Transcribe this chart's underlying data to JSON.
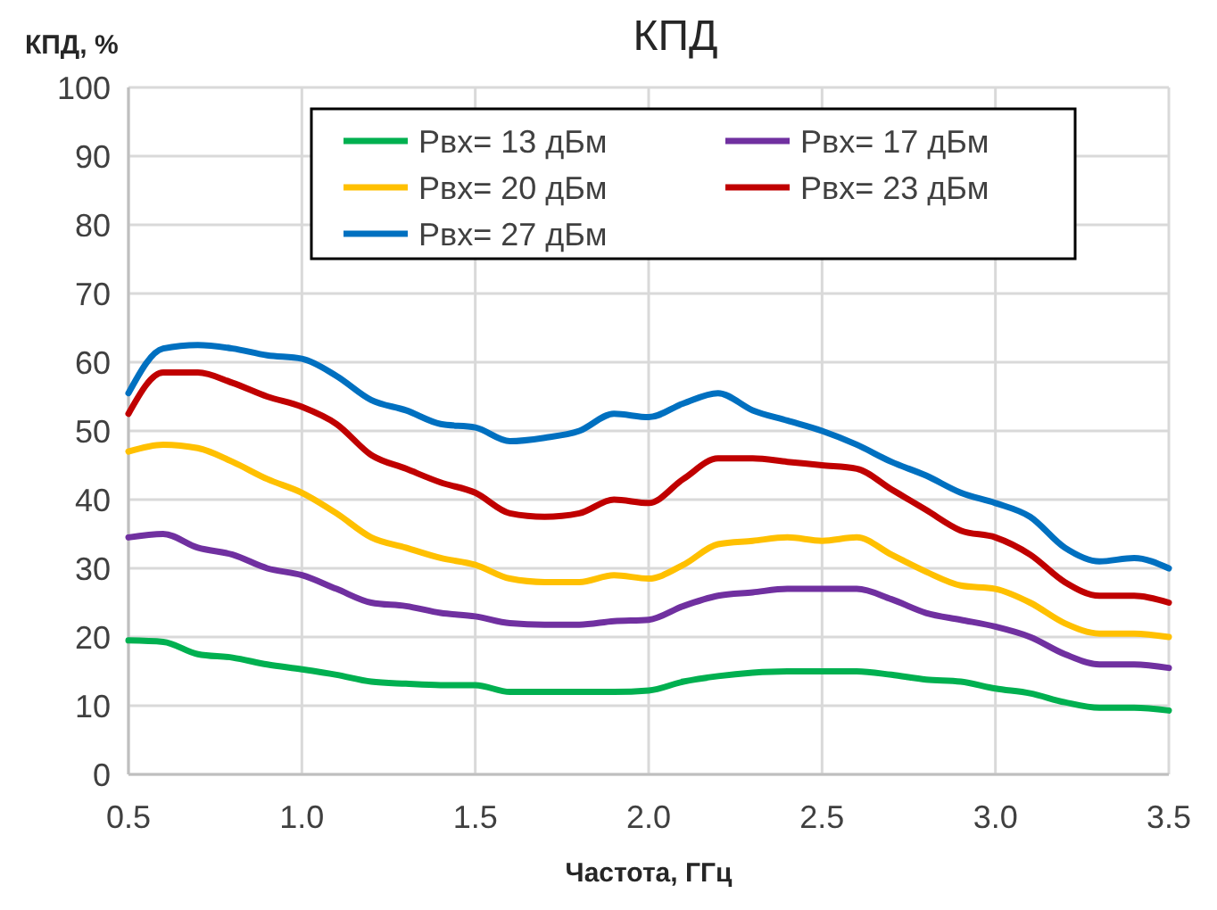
{
  "chart_data": {
    "type": "line",
    "title": "КПД",
    "xlabel": "Частота, ГГц",
    "ylabel": "КПД, %",
    "x": [
      0.5,
      0.6,
      0.7,
      0.8,
      0.9,
      1.0,
      1.1,
      1.2,
      1.3,
      1.4,
      1.5,
      1.6,
      1.7,
      1.8,
      1.9,
      2.0,
      2.1,
      2.2,
      2.3,
      2.4,
      2.5,
      2.6,
      2.7,
      2.8,
      2.9,
      3.0,
      3.1,
      3.2,
      3.3,
      3.4,
      3.5
    ],
    "series": [
      {
        "name": "Рвх= 13 дБм",
        "color": "#00b050",
        "values": [
          19.5,
          19.3,
          17.5,
          17,
          16,
          15.3,
          14.5,
          13.5,
          13.2,
          13,
          13,
          12,
          12,
          12,
          12,
          12.2,
          13.5,
          14.3,
          14.8,
          15,
          15,
          15,
          14.5,
          13.8,
          13.5,
          12.5,
          11.8,
          10.5,
          9.7,
          9.7,
          9.3
        ]
      },
      {
        "name": "Рвх= 17 дБм",
        "color": "#7030a0",
        "values": [
          34.5,
          35,
          33,
          32,
          30,
          29,
          27,
          25,
          24.5,
          23.5,
          23,
          22,
          21.8,
          21.8,
          22.3,
          22.5,
          24.5,
          26,
          26.5,
          27,
          27,
          27,
          25.5,
          23.5,
          22.5,
          21.5,
          20,
          17.5,
          16,
          16,
          15.5
        ]
      },
      {
        "name": "Рвх= 20 дБм",
        "color": "#ffc000",
        "values": [
          47,
          48,
          47.5,
          45.5,
          43,
          41,
          38,
          34.5,
          33,
          31.5,
          30.5,
          28.5,
          28,
          28,
          29,
          28.5,
          30.5,
          33.5,
          34,
          34.5,
          34,
          34.5,
          32,
          29.5,
          27.5,
          27,
          25,
          22,
          20.5,
          20.5,
          20
        ]
      },
      {
        "name": "Рвх= 23 дБм",
        "color": "#c00000",
        "values": [
          52.5,
          58.5,
          58.5,
          57,
          55,
          53.5,
          51,
          46.5,
          44.5,
          42.5,
          41,
          38,
          37.5,
          38,
          40,
          39.5,
          43,
          46,
          46,
          45.5,
          45,
          44.5,
          41.5,
          38.5,
          35.5,
          34.5,
          32,
          28,
          26,
          26,
          25
        ]
      },
      {
        "name": "Рвх= 27 дБм",
        "color": "#0070c0",
        "values": [
          55.5,
          62,
          62.5,
          62,
          61,
          60.5,
          58,
          54.5,
          53,
          51,
          50.5,
          48.5,
          49,
          50,
          52.5,
          52,
          54,
          55.5,
          53,
          51.5,
          50,
          48,
          45.5,
          43.5,
          41,
          39.5,
          37.5,
          33,
          31,
          31.5,
          30
        ]
      }
    ],
    "xlim": [
      0.5,
      3.5
    ],
    "xticks": [
      {
        "value": 0.5,
        "label": "0.5"
      },
      {
        "value": 1,
        "label": "1.0"
      },
      {
        "value": 1.5,
        "label": "1.5"
      },
      {
        "value": 2,
        "label": "2.0"
      },
      {
        "value": 2.5,
        "label": "2.5"
      },
      {
        "value": 3,
        "label": "3.0"
      },
      {
        "value": 3.5,
        "label": "3.5"
      }
    ],
    "ylim": [
      0,
      100
    ],
    "yticks": [
      0,
      10,
      20,
      30,
      40,
      50,
      60,
      70,
      80,
      90,
      100
    ],
    "grid": true,
    "legend": "top",
    "marker": "none",
    "line_style": "solid"
  }
}
